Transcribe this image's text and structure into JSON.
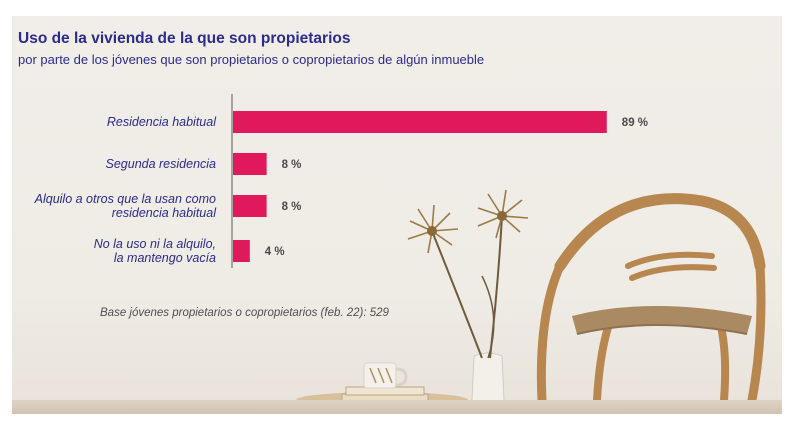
{
  "title": "Uso de la vivienda de la que son propietarios",
  "subtitle": "por parte de los jóvenes que son propietarios o copropietarios de algún inmueble",
  "base_note": "Base jóvenes propietarios o copropietarios (feb. 22): 529",
  "colors": {
    "bar": "#e0185c",
    "title": "#2c2b8f",
    "background": "#efebe5"
  },
  "chart_data": {
    "type": "bar",
    "orientation": "horizontal",
    "categories": [
      [
        "Residencia habitual"
      ],
      [
        "Segunda residencia"
      ],
      [
        "Alquilo a otros que la usan como",
        "residencia habitual"
      ],
      [
        "No la uso ni la alquilo,",
        "la mantengo vacía"
      ]
    ],
    "values": [
      89,
      8,
      8,
      4
    ],
    "value_labels": [
      "89 %",
      "8 %",
      "8 %",
      "4 %"
    ],
    "xlim": [
      0,
      100
    ],
    "grid": false
  }
}
